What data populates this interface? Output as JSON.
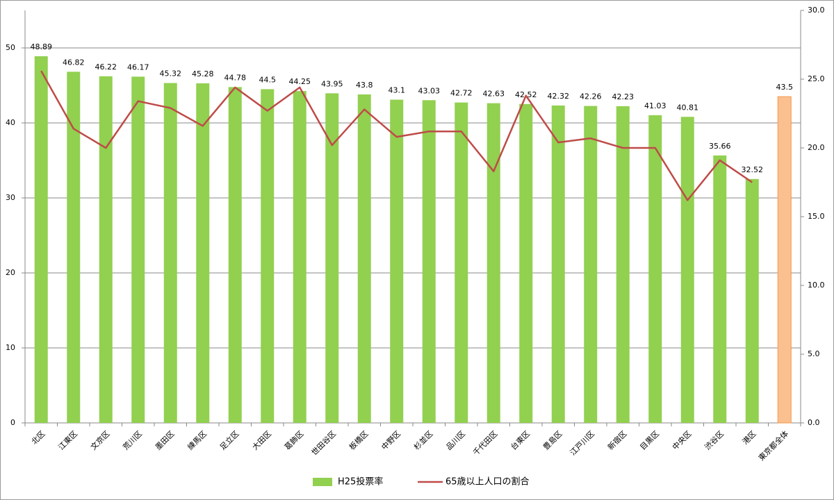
{
  "chart_data": {
    "type": "bar-line",
    "categories": [
      "北区",
      "江東区",
      "文京区",
      "荒川区",
      "墨田区",
      "練馬区",
      "足立区",
      "大田区",
      "葛飾区",
      "世田谷区",
      "板橋区",
      "中野区",
      "杉並区",
      "品川区",
      "千代田区",
      "台東区",
      "豊島区",
      "江戸川区",
      "新宿区",
      "目黒区",
      "中央区",
      "渋谷区",
      "港区",
      "東京都全体"
    ],
    "series": [
      {
        "name": "H25投票率",
        "type": "bar",
        "color": "#92d050",
        "colors": [
          "#92d050",
          "#92d050",
          "#92d050",
          "#92d050",
          "#92d050",
          "#92d050",
          "#92d050",
          "#92d050",
          "#92d050",
          "#92d050",
          "#92d050",
          "#92d050",
          "#92d050",
          "#92d050",
          "#92d050",
          "#92d050",
          "#92d050",
          "#92d050",
          "#92d050",
          "#92d050",
          "#92d050",
          "#92d050",
          "#92d050",
          "#fac090"
        ],
        "values": [
          48.89,
          46.82,
          46.22,
          46.17,
          45.32,
          45.28,
          44.78,
          44.5,
          44.25,
          43.95,
          43.8,
          43.1,
          43.03,
          42.72,
          42.63,
          42.52,
          42.32,
          42.26,
          42.23,
          41.03,
          40.81,
          35.66,
          32.52,
          43.5
        ]
      },
      {
        "name": "65歳以上人口の割合",
        "type": "line",
        "axis": "y2",
        "color": "#be4b48",
        "values": [
          25.6,
          21.4,
          20.0,
          23.4,
          22.9,
          21.6,
          24.4,
          22.7,
          24.4,
          20.2,
          22.8,
          20.8,
          21.2,
          21.2,
          18.3,
          23.8,
          20.4,
          20.7,
          20.0,
          20.0,
          16.2,
          19.1,
          17.5,
          null
        ]
      }
    ],
    "ylim": [
      0,
      55
    ],
    "yticks": [
      0,
      10,
      20,
      30,
      40,
      50
    ],
    "y2lim": [
      0,
      30
    ],
    "y2ticks": [
      {
        "value": 0,
        "label": "0.0"
      },
      {
        "value": 5,
        "label": "5.0"
      },
      {
        "value": 10,
        "label": "10.0"
      },
      {
        "value": 15,
        "label": "15.0"
      },
      {
        "value": 20,
        "label": "20.0"
      },
      {
        "value": 25,
        "label": "25.0"
      },
      {
        "value": 30,
        "label": "30.0"
      }
    ],
    "grid": true,
    "legend": "bottom"
  }
}
